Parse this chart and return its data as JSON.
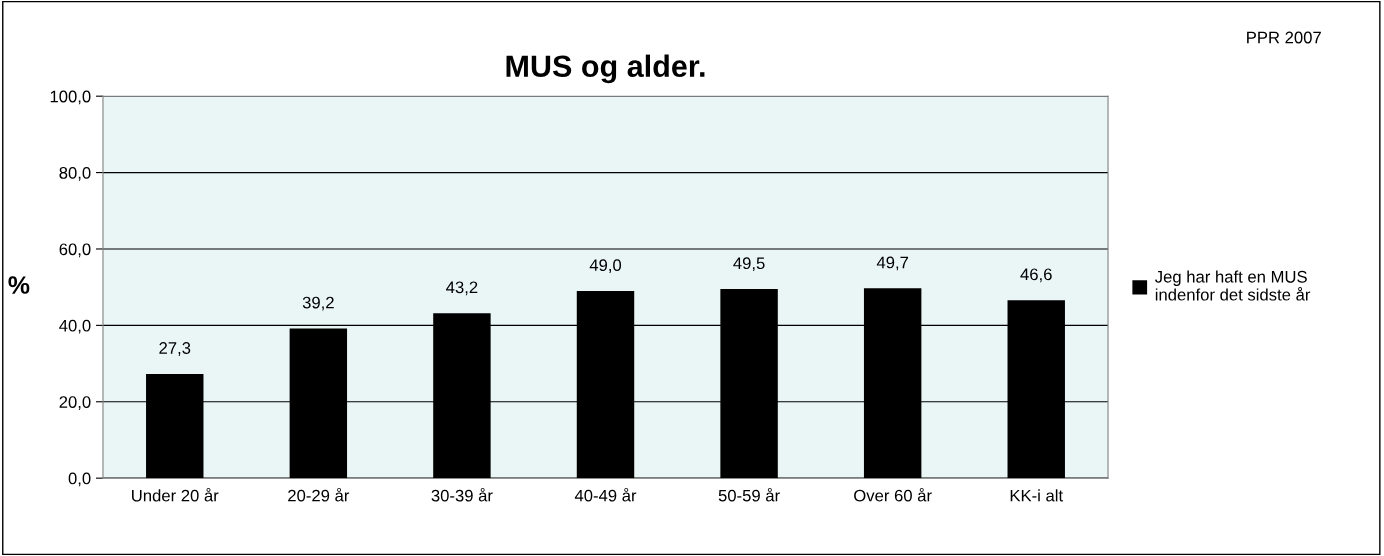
{
  "chart_data": {
    "type": "bar",
    "title": "MUS og alder.",
    "ylabel": "%",
    "categories": [
      "Under 20 år",
      "20-29 år",
      "30-39 år",
      "40-49 år",
      "50-59 år",
      "Over 60 år",
      "KK-i alt"
    ],
    "series": [
      {
        "name": "Jeg har haft en MUS\nindenfor det sidste år",
        "color": "#000000",
        "values": [
          27.3,
          39.2,
          43.2,
          49.0,
          49.5,
          49.7,
          46.6
        ],
        "value_labels": [
          "27,3",
          "39,2",
          "43,2",
          "49,0",
          "49,5",
          "49,7",
          "46,6"
        ]
      }
    ],
    "ylim": [
      0,
      100
    ],
    "yticks": [
      {
        "value": 0,
        "label": "0,0"
      },
      {
        "value": 20,
        "label": "20,0"
      },
      {
        "value": 40,
        "label": "40,0"
      },
      {
        "value": 60,
        "label": "60,0"
      },
      {
        "value": 80,
        "label": "80,0"
      },
      {
        "value": 100,
        "label": "100,0"
      }
    ],
    "grid": "y",
    "legend": "right",
    "annotations": [
      "PPR 2007"
    ]
  }
}
